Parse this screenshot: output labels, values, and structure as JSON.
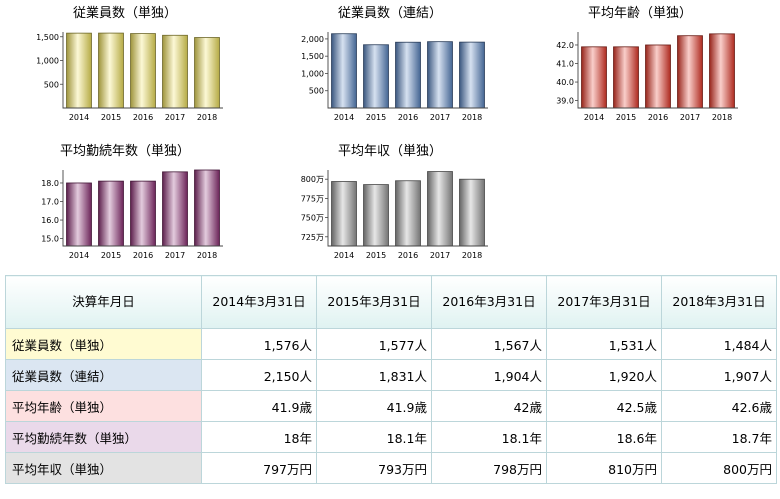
{
  "chart_data": [
    {
      "type": "bar",
      "title": "従業員数（単独）",
      "categories": [
        "2014",
        "2015",
        "2016",
        "2017",
        "2018"
      ],
      "values": [
        1576,
        1577,
        1567,
        1531,
        1484
      ],
      "ylim": [
        0,
        1600
      ],
      "yticks": [
        500,
        1000,
        1500
      ],
      "ytick_labels": [
        "500",
        "1,000",
        "1,500"
      ],
      "color": "#f3e45c",
      "grid": false
    },
    {
      "type": "bar",
      "title": "従業員数（連結）",
      "categories": [
        "2014",
        "2015",
        "2016",
        "2017",
        "2018"
      ],
      "values": [
        2150,
        1831,
        1904,
        1920,
        1907
      ],
      "ylim": [
        0,
        2200
      ],
      "yticks": [
        500,
        1000,
        1500,
        2000
      ],
      "ytick_labels": [
        "500",
        "1,000",
        "1,500",
        "2,000"
      ],
      "color": "#5b86c4",
      "grid": false
    },
    {
      "type": "bar",
      "title": "平均年齢（単独）",
      "categories": [
        "2014",
        "2015",
        "2016",
        "2017",
        "2018"
      ],
      "values": [
        41.9,
        41.9,
        42,
        42.5,
        42.6
      ],
      "ylim": [
        38.6,
        42.7
      ],
      "yticks": [
        39,
        40,
        41,
        42
      ],
      "ytick_labels": [
        "39.0",
        "40.0",
        "41.0",
        "42.0"
      ],
      "color": "#e8392a",
      "grid": false
    },
    {
      "type": "bar",
      "title": "平均勤続年数（単独）",
      "categories": [
        "2014",
        "2015",
        "2016",
        "2017",
        "2018"
      ],
      "values": [
        18,
        18.1,
        18.1,
        18.6,
        18.7
      ],
      "ylim": [
        14.6,
        18.7
      ],
      "yticks": [
        15,
        16,
        17,
        18
      ],
      "ytick_labels": [
        "15.0",
        "16.0",
        "17.0",
        "18.0"
      ],
      "color": "#8e2f75",
      "grid": false
    },
    {
      "type": "bar",
      "title": "平均年収（単独）",
      "categories": [
        "2014",
        "2015",
        "2016",
        "2017",
        "2018"
      ],
      "values": [
        797,
        793,
        798,
        810,
        800
      ],
      "ylim": [
        713,
        812
      ],
      "yticks": [
        725,
        750,
        775,
        800
      ],
      "ytick_labels": [
        "725万",
        "750万",
        "775万",
        "800万"
      ],
      "color": "#9a9a9a",
      "grid": false
    }
  ],
  "table": {
    "header_label": "決算年月日",
    "columns": [
      "2014年3月31日",
      "2015年3月31日",
      "2016年3月31日",
      "2017年3月31日",
      "2018年3月31日"
    ],
    "rows": [
      {
        "label": "従業員数（単独）",
        "color": "#fffbd2",
        "values": [
          "1,576人",
          "1,577人",
          "1,567人",
          "1,531人",
          "1,484人"
        ]
      },
      {
        "label": "従業員数（連結）",
        "color": "#dbe6f2",
        "values": [
          "2,150人",
          "1,831人",
          "1,904人",
          "1,920人",
          "1,907人"
        ]
      },
      {
        "label": "平均年齢（単独）",
        "color": "#fde0e0",
        "values": [
          "41.9歳",
          "41.9歳",
          "42歳",
          "42.5歳",
          "42.6歳"
        ]
      },
      {
        "label": "平均勤続年数（単独）",
        "color": "#ead9ea",
        "values": [
          "18年",
          "18.1年",
          "18.1年",
          "18.6年",
          "18.7年"
        ]
      },
      {
        "label": "平均年収（単独）",
        "color": "#e3e3e3",
        "values": [
          "797万円",
          "793万円",
          "798万円",
          "810万円",
          "800万円"
        ]
      }
    ]
  }
}
